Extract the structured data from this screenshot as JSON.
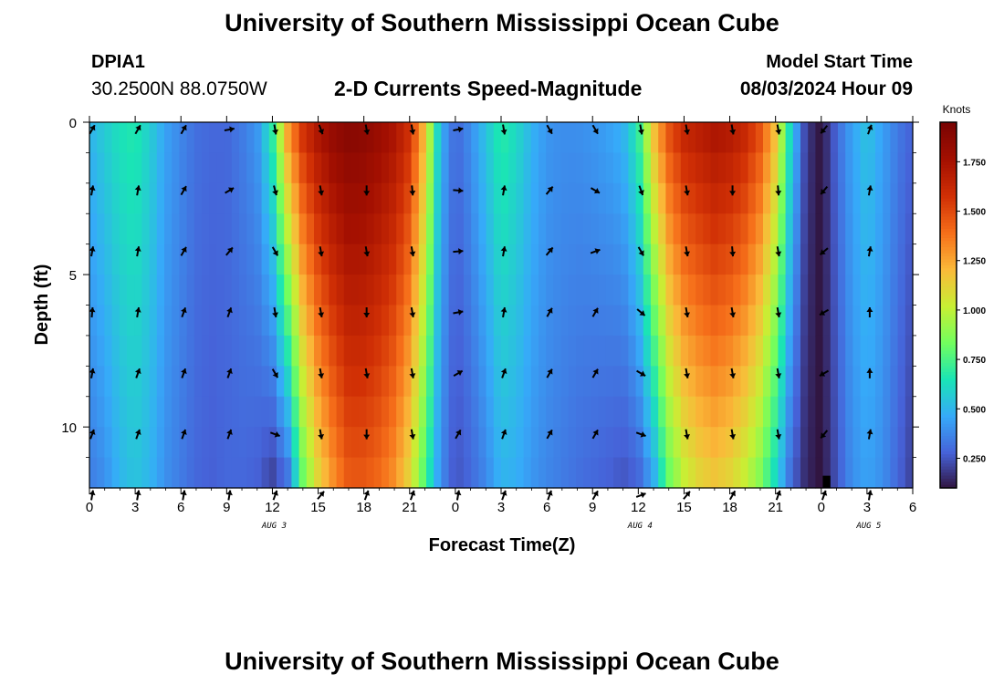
{
  "header": {
    "title": "University of Southern Mississippi Ocean Cube",
    "station_id": "DPIA1",
    "coords": "30.2500N  88.0750W",
    "subtitle": "2-D Currents Speed-Magnitude",
    "model_start_label": "Model Start Time",
    "model_start_value": "08/03/2024 Hour 09"
  },
  "footer": {
    "title": "University of Southern Mississippi Ocean Cube"
  },
  "chart_data": {
    "type": "heatmap",
    "title": "2-D Currents Speed-Magnitude",
    "xlabel": "Forecast Time(Z)",
    "ylabel": "Depth (ft)",
    "x_unit": "hours from 00Z Aug 3",
    "xlim": [
      0,
      54
    ],
    "ylim": [
      0,
      12
    ],
    "x_ticks": [
      0,
      3,
      6,
      9,
      12,
      15,
      18,
      21,
      24,
      27,
      30,
      33,
      36,
      39,
      42,
      45,
      48,
      51,
      54
    ],
    "x_tick_labels": [
      "0",
      "3",
      "6",
      "9",
      "12",
      "15",
      "18",
      "21",
      "0",
      "3",
      "6",
      "9",
      "12",
      "15",
      "18",
      "21",
      "0",
      "3",
      "6"
    ],
    "y_ticks": [
      0,
      5,
      10
    ],
    "y_tick_labels": [
      "0",
      "5",
      "10"
    ],
    "date_labels": [
      {
        "hour": 12,
        "label": "AUG 3"
      },
      {
        "hour": 36,
        "label": "AUG 4"
      },
      {
        "hour": 51,
        "label": "AUG 5"
      }
    ],
    "colorbar": {
      "units": "Knots",
      "min": 0.1,
      "max": 1.95,
      "ticks": [
        0.25,
        0.5,
        0.75,
        1.0,
        1.25,
        1.5,
        1.75
      ],
      "tick_labels": [
        "0.250",
        "0.500",
        "0.750",
        "1.000",
        "1.250",
        "1.500",
        "1.750"
      ]
    },
    "speed_profile": {
      "hours": [
        0,
        1,
        2,
        3,
        4,
        5,
        6,
        7,
        8,
        9,
        10,
        11,
        12,
        13,
        14,
        15,
        16,
        17,
        18,
        19,
        20,
        21,
        22,
        23,
        24,
        25,
        26,
        27,
        28,
        29,
        30,
        31,
        32,
        33,
        34,
        35,
        36,
        37,
        38,
        39,
        40,
        41,
        42,
        43,
        44,
        45,
        46,
        47,
        48,
        49,
        50,
        51,
        52,
        53,
        54
      ],
      "surface_knots": [
        0.5,
        0.58,
        0.65,
        0.68,
        0.58,
        0.45,
        0.38,
        0.32,
        0.3,
        0.3,
        0.35,
        0.42,
        0.7,
        1.3,
        1.6,
        1.75,
        1.85,
        1.9,
        1.88,
        1.82,
        1.75,
        1.6,
        1.2,
        0.5,
        0.3,
        0.4,
        0.55,
        0.7,
        0.62,
        0.5,
        0.42,
        0.4,
        0.4,
        0.42,
        0.45,
        0.5,
        0.7,
        1.2,
        1.5,
        1.65,
        1.7,
        1.75,
        1.72,
        1.65,
        1.5,
        1.2,
        0.6,
        0.2,
        0.1,
        0.3,
        0.45,
        0.55,
        0.45,
        0.35,
        0.28
      ],
      "bottom_knots": [
        0.35,
        0.4,
        0.5,
        0.55,
        0.5,
        0.4,
        0.35,
        0.3,
        0.28,
        0.3,
        0.3,
        0.28,
        0.2,
        0.3,
        0.8,
        1.1,
        1.3,
        1.45,
        1.45,
        1.4,
        1.3,
        1.1,
        0.75,
        0.4,
        0.25,
        0.3,
        0.38,
        0.5,
        0.48,
        0.42,
        0.38,
        0.35,
        0.32,
        0.3,
        0.28,
        0.25,
        0.28,
        0.45,
        0.8,
        1.0,
        1.1,
        1.15,
        1.1,
        1.0,
        0.85,
        0.6,
        0.3,
        0.15,
        0.1,
        0.25,
        0.4,
        0.45,
        0.4,
        0.3,
        0.2
      ]
    },
    "vectors": {
      "depths": [
        0,
        2,
        4,
        6,
        8,
        10,
        12
      ],
      "hours": [
        0,
        3,
        6,
        9,
        12,
        15,
        18,
        21,
        24,
        27,
        30,
        33,
        36,
        39,
        42,
        45,
        48,
        51
      ],
      "direction_deg": [
        [
          30,
          30,
          30,
          80,
          170,
          160,
          170,
          170,
          80,
          170,
          150,
          150,
          170,
          170,
          170,
          170,
          220,
          20
        ],
        [
          10,
          10,
          30,
          60,
          165,
          170,
          180,
          175,
          95,
          10,
          40,
          120,
          160,
          170,
          180,
          175,
          220,
          10
        ],
        [
          10,
          10,
          30,
          40,
          150,
          170,
          170,
          170,
          85,
          10,
          40,
          70,
          150,
          170,
          175,
          170,
          230,
          10
        ],
        [
          5,
          10,
          20,
          20,
          170,
          170,
          180,
          170,
          80,
          10,
          30,
          30,
          130,
          170,
          170,
          170,
          240,
          0
        ],
        [
          10,
          20,
          20,
          20,
          150,
          170,
          170,
          170,
          60,
          20,
          30,
          30,
          120,
          170,
          170,
          170,
          240,
          0
        ],
        [
          20,
          20,
          20,
          20,
          110,
          170,
          180,
          170,
          30,
          20,
          30,
          30,
          110,
          170,
          170,
          170,
          220,
          10
        ],
        [
          10,
          10,
          10,
          10,
          20,
          40,
          20,
          20,
          10,
          20,
          20,
          30,
          70,
          40,
          30,
          20,
          20,
          10
        ]
      ]
    }
  }
}
